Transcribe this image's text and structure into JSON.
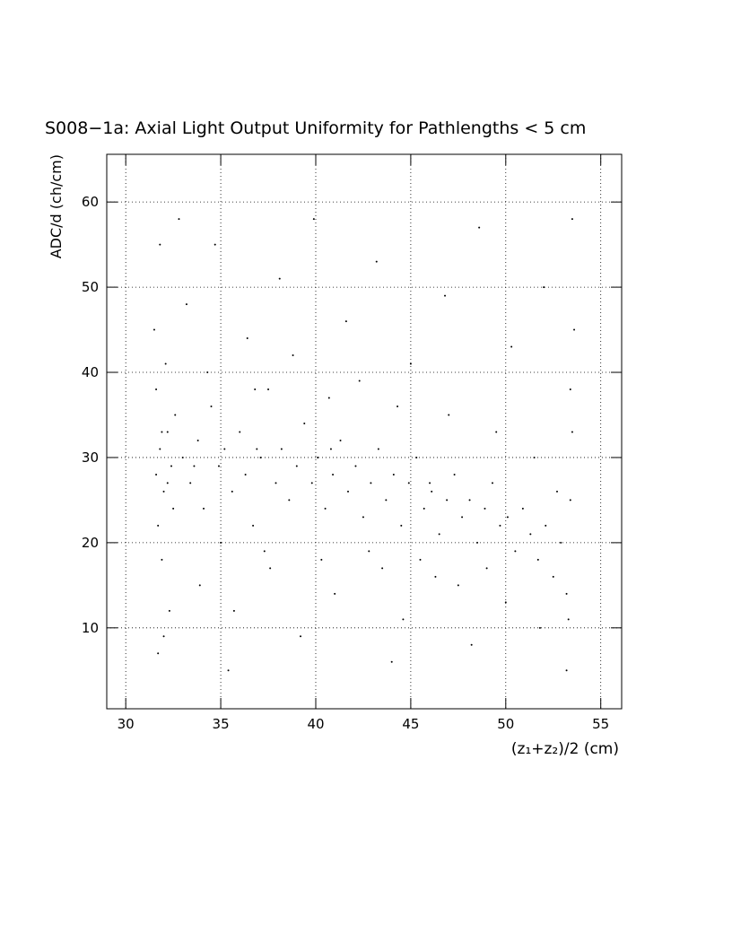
{
  "chart_data": {
    "type": "scatter",
    "title": "S008−1a: Axial Light Output Uniformity for Pathlengths < 5 cm",
    "x_label": "(z₁+z₂)/2 (cm)",
    "y_label": "ADC/d (ch/cm)",
    "xlim": [
      29,
      56.1
    ],
    "ylim": [
      0.5,
      65.6
    ],
    "xticks": [
      30,
      35,
      40,
      45,
      50,
      55
    ],
    "yticks": [
      10,
      20,
      30,
      40,
      50,
      60
    ],
    "grid": true,
    "color": "#000000",
    "x": [
      31.6,
      31.8,
      32.0,
      32.2,
      31.7,
      32.4,
      32.6,
      31.9,
      32.1,
      31.5,
      31.8,
      32.3,
      32.0,
      33.0,
      33.4,
      33.8,
      34.1,
      34.5,
      34.9,
      35.2,
      35.6,
      36.0,
      36.3,
      36.7,
      37.1,
      37.5,
      37.9,
      38.2,
      38.6,
      39.0,
      39.4,
      39.8,
      40.1,
      40.5,
      40.9,
      41.3,
      41.7,
      42.1,
      42.5,
      42.9,
      43.3,
      43.7,
      44.1,
      44.5,
      44.9,
      45.3,
      45.7,
      46.1,
      46.5,
      46.9,
      47.3,
      47.7,
      48.1,
      48.5,
      48.9,
      49.3,
      49.7,
      50.1,
      50.5,
      50.9,
      51.3,
      51.7,
      52.1,
      52.5,
      52.9,
      53.2,
      53.4,
      53.5,
      53.3,
      53.6,
      53.5,
      33.2,
      34.7,
      36.4,
      38.1,
      39.9,
      41.6,
      43.2,
      45.0,
      46.8,
      48.6,
      50.3,
      52.0,
      33.9,
      35.7,
      37.6,
      39.2,
      41.0,
      42.8,
      44.6,
      46.3,
      48.2,
      50.0,
      51.8,
      34.3,
      36.8,
      38.8,
      40.7,
      42.3,
      44.3,
      47.0,
      49.5,
      51.5,
      35.0,
      37.3,
      40.3,
      43.5,
      45.5,
      47.5,
      49.0,
      32.8,
      31.6,
      32.5,
      31.9,
      32.2,
      33.6,
      36.9,
      40.8,
      46.0,
      52.7,
      53.4,
      35.4,
      44.0,
      53.2,
      31.7
    ],
    "y": [
      28,
      31,
      26,
      33,
      22,
      29,
      35,
      18,
      41,
      45,
      55,
      12,
      9,
      30,
      27,
      32,
      24,
      36,
      29,
      31,
      26,
      33,
      28,
      22,
      30,
      38,
      27,
      31,
      25,
      29,
      34,
      27,
      30,
      24,
      28,
      32,
      26,
      29,
      23,
      27,
      31,
      25,
      28,
      22,
      27,
      30,
      24,
      26,
      21,
      25,
      28,
      23,
      25,
      20,
      24,
      27,
      22,
      23,
      19,
      24,
      21,
      18,
      22,
      16,
      20,
      14,
      25,
      33,
      11,
      45,
      58,
      48,
      55,
      44,
      51,
      58,
      46,
      53,
      41,
      49,
      57,
      43,
      50,
      15,
      12,
      17,
      9,
      14,
      19,
      11,
      16,
      8,
      13,
      10,
      40,
      38,
      42,
      37,
      39,
      36,
      35,
      33,
      30,
      20,
      19,
      18,
      17,
      18,
      15,
      17,
      58,
      38,
      24,
      33,
      27,
      29,
      31,
      31,
      27,
      26,
      38,
      5,
      6,
      5,
      7
    ]
  }
}
